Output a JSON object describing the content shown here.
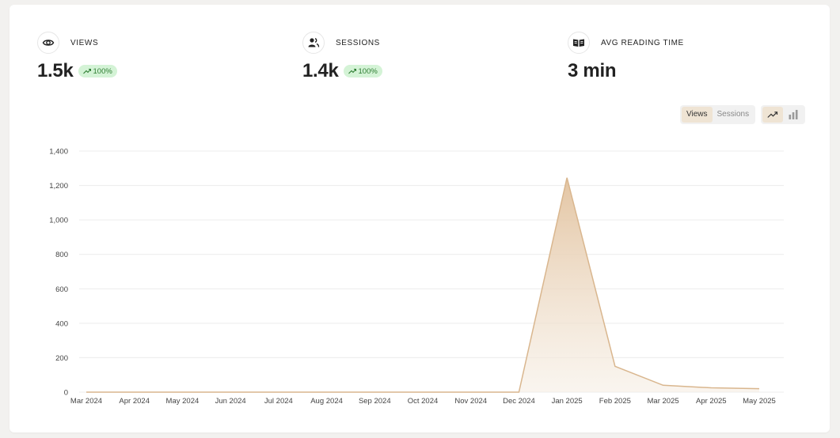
{
  "metrics": [
    {
      "label": "VIEWS",
      "value": "1.5k",
      "change": "100%",
      "icon": "eye-icon"
    },
    {
      "label": "SESSIONS",
      "value": "1.4k",
      "change": "100%",
      "icon": "users-icon"
    },
    {
      "label": "AVG READING TIME",
      "value": "3 min",
      "icon": "book-open-icon"
    }
  ],
  "toggle": {
    "views_label": "Views",
    "sessions_label": "Sessions",
    "active": "Views"
  },
  "chart_type_toggle": {
    "line_icon": "trending-up-icon",
    "bar_icon": "bar-chart-icon",
    "active": "area"
  },
  "colors": {
    "area_stroke": "#d9b68e",
    "area_fill_top": "#e2c29e",
    "area_fill_bottom": "#f6eee4",
    "badge_bg": "#d4f3d6",
    "badge_text": "#2e7d32",
    "toggle_active_bg": "#efe4d4"
  },
  "chart_data": {
    "type": "area",
    "series": [
      {
        "values": [
          0,
          0,
          0,
          0,
          0,
          0,
          0,
          0,
          0,
          0,
          1245,
          150,
          40,
          25,
          20
        ]
      }
    ],
    "x": [
      "Mar 2024",
      "Apr 2024",
      "May 2024",
      "Jun 2024",
      "Jul 2024",
      "Aug 2024",
      "Sep 2024",
      "Oct 2024",
      "Nov 2024",
      "Dec 2024",
      "Jan 2025",
      "Feb 2025",
      "Mar 2025",
      "Apr 2025",
      "May 2025"
    ],
    "yticks": [
      "0",
      "200",
      "400",
      "600",
      "800",
      "1,000",
      "1,200",
      "1,400"
    ],
    "ylim": [
      0,
      1400
    ],
    "grid": true,
    "legend": "none"
  }
}
